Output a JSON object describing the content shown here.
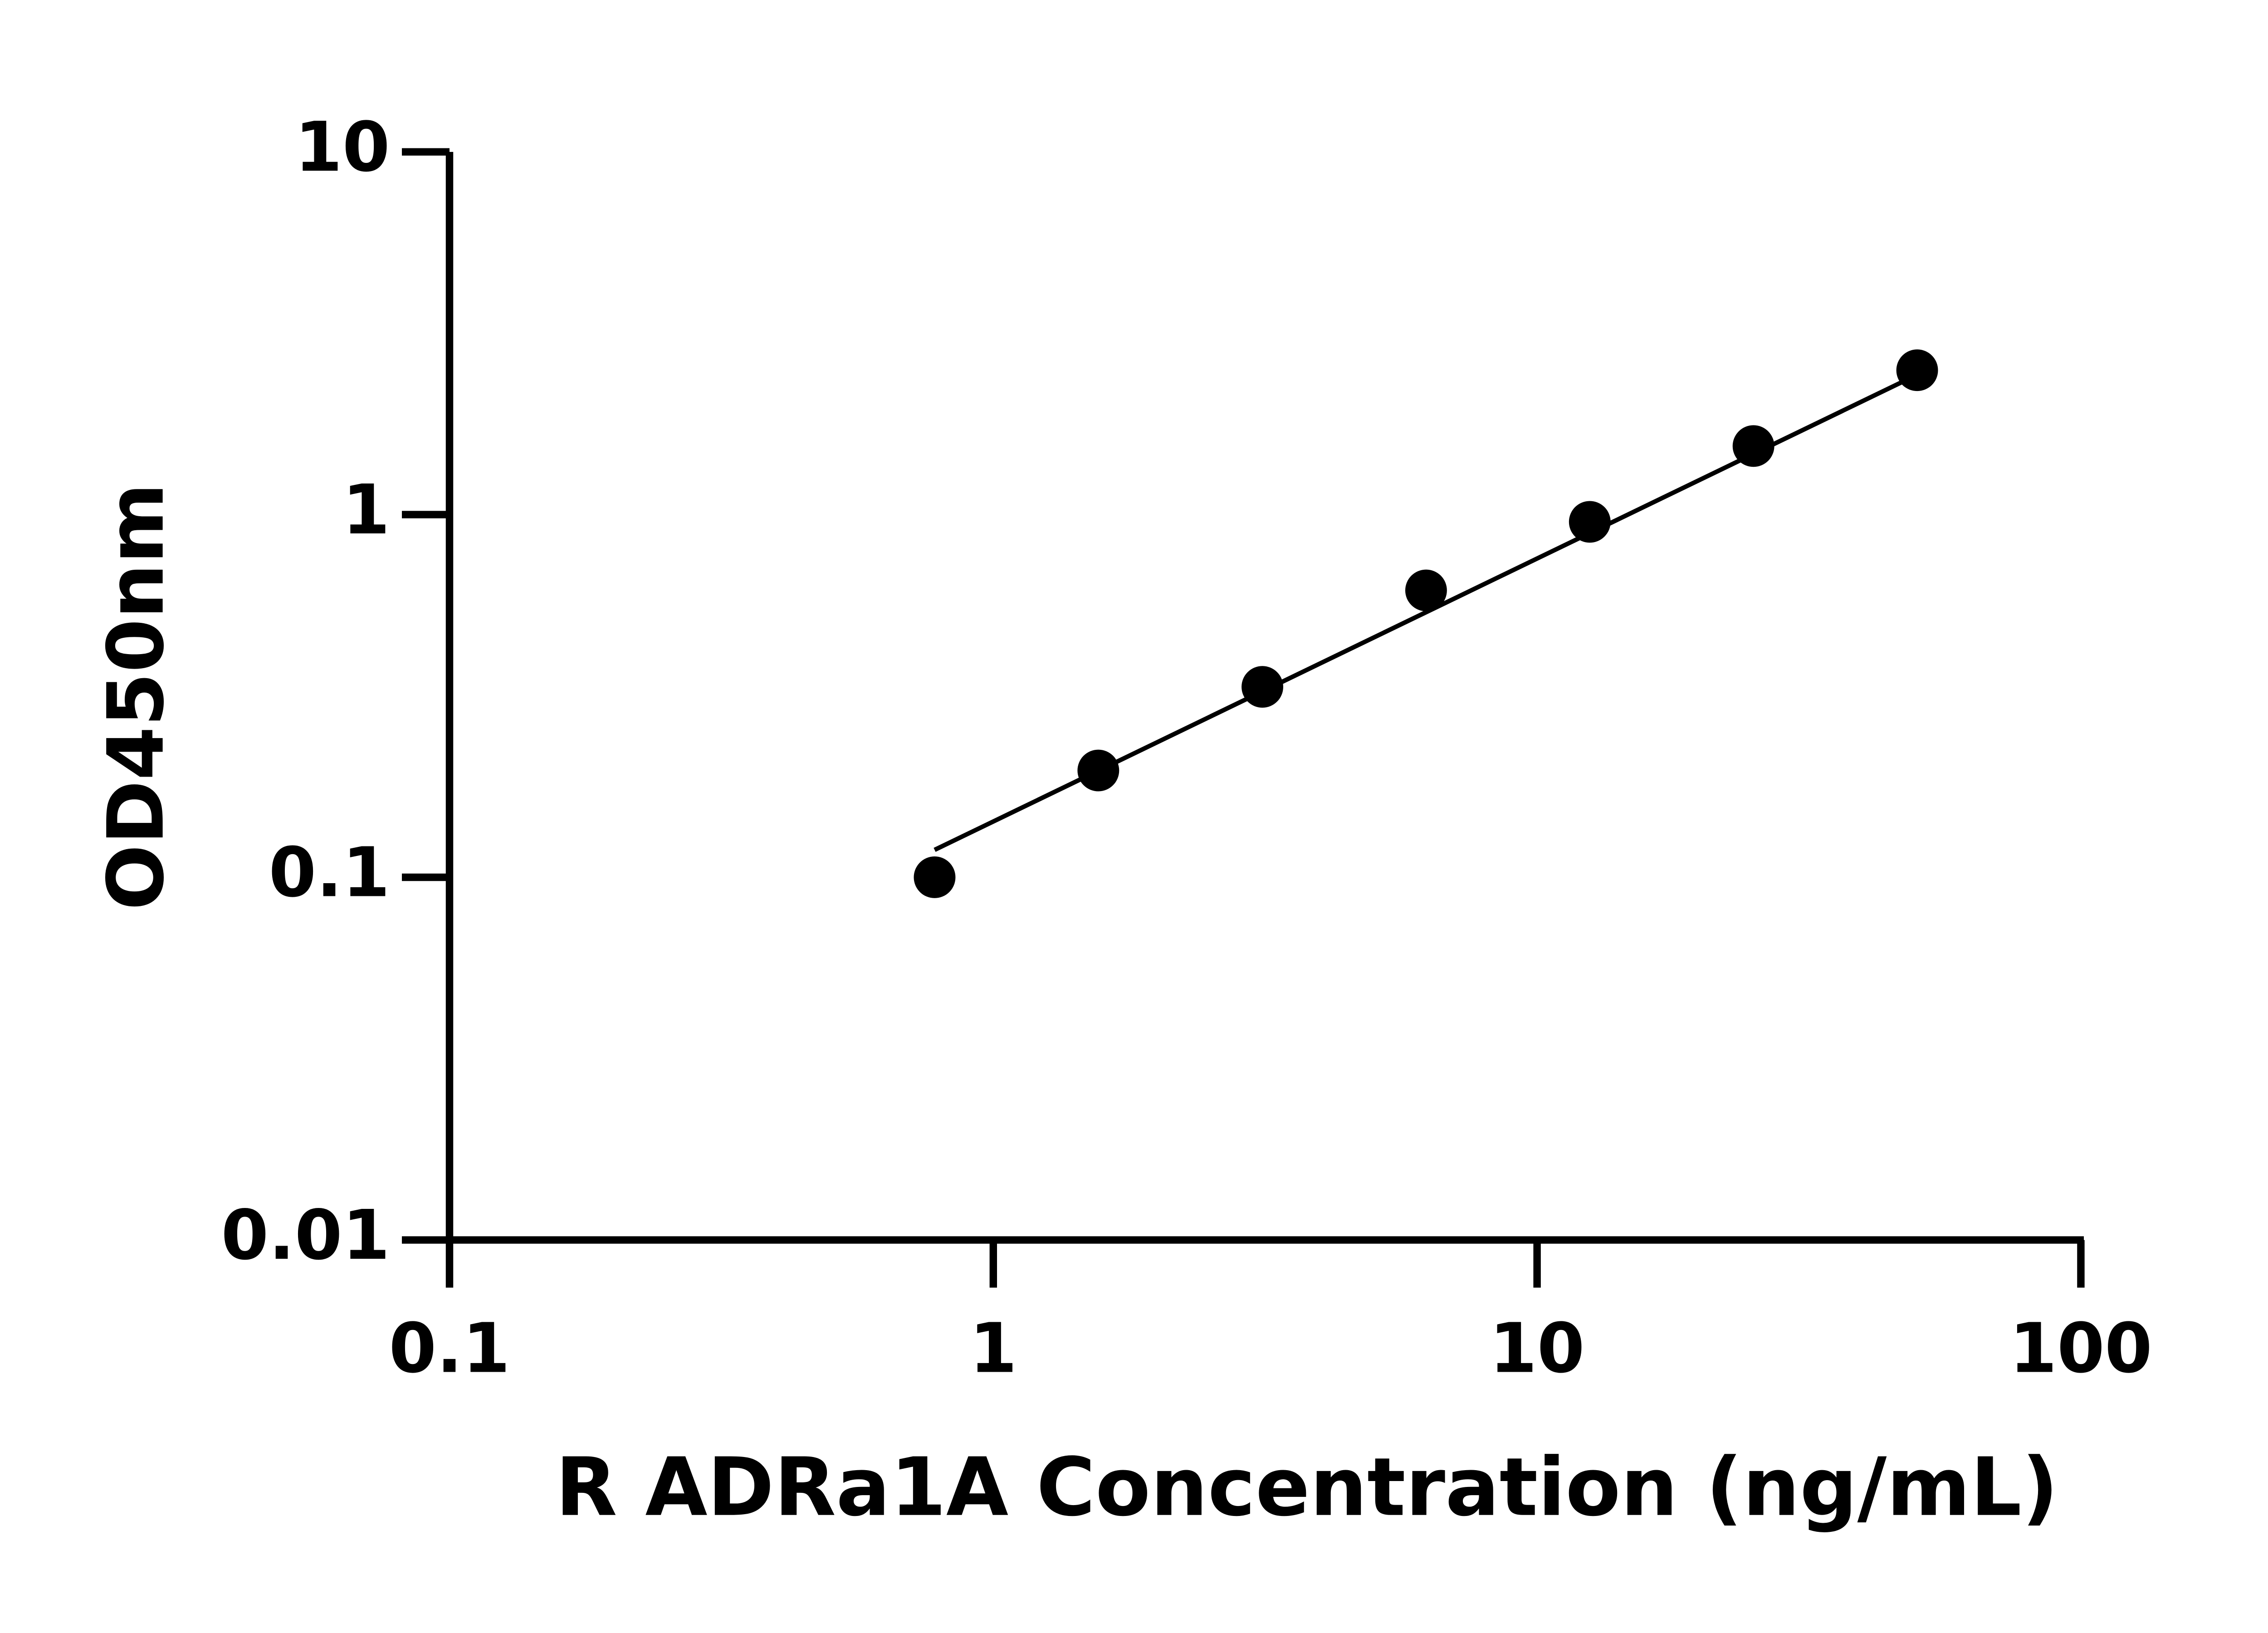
{
  "chart_data": {
    "type": "scatter",
    "x_label": "R ADRa1A Concentration (ng/mL)",
    "y_label": "OD450nm",
    "x": [
      0.78,
      1.56,
      3.125,
      6.25,
      12.5,
      25,
      50
    ],
    "values": [
      0.1,
      0.197,
      0.335,
      0.618,
      0.955,
      1.545,
      2.5
    ],
    "color": "#000000",
    "fit_line": {
      "x": [
        0.78,
        50
      ],
      "values": [
        0.119,
        2.43
      ]
    },
    "xlog": true,
    "ylog": true,
    "xlim": [
      0.1,
      100
    ],
    "ylim": [
      0.01,
      10
    ],
    "xticks": [
      0.1,
      1,
      10,
      100
    ],
    "yticks": [
      0.01,
      0.1,
      1,
      10
    ]
  }
}
